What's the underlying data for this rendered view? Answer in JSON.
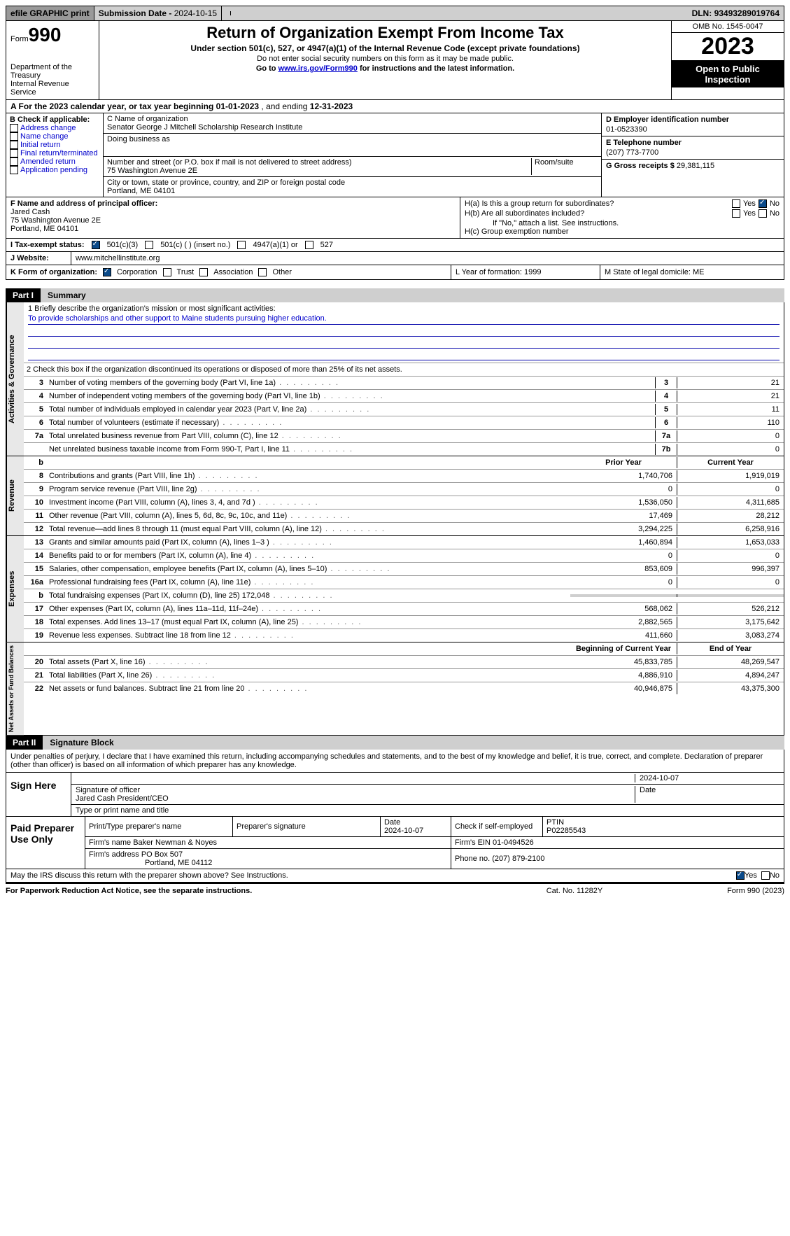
{
  "topbar": {
    "efile": "efile GRAPHIC print",
    "subdate_lbl": "Submission Date - ",
    "subdate": "2024-10-15",
    "dln_lbl": "DLN: ",
    "dln": "93493289019764"
  },
  "header": {
    "form_lbl": "Form",
    "form_num": "990",
    "dept1": "Department of the Treasury",
    "dept2": "Internal Revenue Service",
    "title": "Return of Organization Exempt From Income Tax",
    "sub": "Under section 501(c), 527, or 4947(a)(1) of the Internal Revenue Code (except private foundations)",
    "sub2": "Do not enter social security numbers on this form as it may be made public.",
    "sub3_pre": "Go to ",
    "sub3_link": "www.irs.gov/Form990",
    "sub3_post": " for instructions and the latest information.",
    "omb": "OMB No. 1545-0047",
    "year": "2023",
    "inspection": "Open to Public Inspection"
  },
  "rowA": {
    "pre": "A For the 2023 calendar year, or tax year beginning ",
    "begin": "01-01-2023",
    "mid": "   , and ending ",
    "end": "12-31-2023"
  },
  "boxB": {
    "lbl": "B Check if applicable:",
    "opts": [
      "Address change",
      "Name change",
      "Initial return",
      "Final return/terminated",
      "Amended return",
      "Application pending"
    ]
  },
  "boxC": {
    "name_lbl": "C Name of organization",
    "name": "Senator George J Mitchell Scholarship Research Institute",
    "dba_lbl": "Doing business as",
    "street_lbl": "Number and street (or P.O. box if mail is not delivered to street address)",
    "street": "75 Washington Avenue 2E",
    "room_lbl": "Room/suite",
    "city_lbl": "City or town, state or province, country, and ZIP or foreign postal code",
    "city": "Portland, ME  04101"
  },
  "boxD": {
    "lbl": "D Employer identification number",
    "val": "01-0523390"
  },
  "boxE": {
    "lbl": "E Telephone number",
    "val": "(207) 773-7700"
  },
  "boxG": {
    "lbl": "G Gross receipts $ ",
    "val": "29,381,115"
  },
  "boxF": {
    "lbl": "F  Name and address of principal officer:",
    "name": "Jared Cash",
    "street": "75 Washington Avenue 2E",
    "city": "Portland, ME  04101"
  },
  "boxH": {
    "ha": "H(a)  Is this a group return for subordinates?",
    "hb": "H(b)  Are all subordinates included?",
    "hb_note": "If \"No,\" attach a list. See instructions.",
    "hc": "H(c)  Group exemption number "
  },
  "rowI": {
    "lbl": "I   Tax-exempt status:",
    "o1": "501(c)(3)",
    "o2": "501(c) (  ) (insert no.)",
    "o3": "4947(a)(1) or",
    "o4": "527"
  },
  "rowJ": {
    "lbl": "J   Website:",
    "val": "www.mitchellinstitute.org"
  },
  "rowK": {
    "lbl": "K Form of organization:",
    "o1": "Corporation",
    "o2": "Trust",
    "o3": "Association",
    "o4": "Other",
    "L": "L Year of formation: 1999",
    "M": "M State of legal domicile: ME"
  },
  "part1": {
    "num": "Part I",
    "title": "Summary"
  },
  "mission": {
    "lbl": "1   Briefly describe the organization's mission or most significant activities:",
    "text": "To provide scholarships and other support to Maine students pursuing higher education."
  },
  "line2": "2   Check this box        if the organization discontinued its operations or disposed of more than 25% of its net assets.",
  "govRows": [
    {
      "n": "3",
      "d": "Number of voting members of the governing body (Part VI, line 1a)",
      "rn": "3",
      "v": "21"
    },
    {
      "n": "4",
      "d": "Number of independent voting members of the governing body (Part VI, line 1b)",
      "rn": "4",
      "v": "21"
    },
    {
      "n": "5",
      "d": "Total number of individuals employed in calendar year 2023 (Part V, line 2a)",
      "rn": "5",
      "v": "11"
    },
    {
      "n": "6",
      "d": "Total number of volunteers (estimate if necessary)",
      "rn": "6",
      "v": "110"
    },
    {
      "n": "7a",
      "d": "Total unrelated business revenue from Part VIII, column (C), line 12",
      "rn": "7a",
      "v": "0"
    },
    {
      "n": "",
      "d": "Net unrelated business taxable income from Form 990-T, Part I, line 11",
      "rn": "7b",
      "v": "0"
    }
  ],
  "revHdr": {
    "b": "b",
    "py": "Prior Year",
    "cy": "Current Year"
  },
  "revRows": [
    {
      "n": "8",
      "d": "Contributions and grants (Part VIII, line 1h)",
      "v1": "1,740,706",
      "v2": "1,919,019"
    },
    {
      "n": "9",
      "d": "Program service revenue (Part VIII, line 2g)",
      "v1": "0",
      "v2": "0"
    },
    {
      "n": "10",
      "d": "Investment income (Part VIII, column (A), lines 3, 4, and 7d )",
      "v1": "1,536,050",
      "v2": "4,311,685"
    },
    {
      "n": "11",
      "d": "Other revenue (Part VIII, column (A), lines 5, 6d, 8c, 9c, 10c, and 11e)",
      "v1": "17,469",
      "v2": "28,212"
    },
    {
      "n": "12",
      "d": "Total revenue—add lines 8 through 11 (must equal Part VIII, column (A), line 12)",
      "v1": "3,294,225",
      "v2": "6,258,916"
    }
  ],
  "expRows": [
    {
      "n": "13",
      "d": "Grants and similar amounts paid (Part IX, column (A), lines 1–3 )",
      "v1": "1,460,894",
      "v2": "1,653,033"
    },
    {
      "n": "14",
      "d": "Benefits paid to or for members (Part IX, column (A), line 4)",
      "v1": "0",
      "v2": "0"
    },
    {
      "n": "15",
      "d": "Salaries, other compensation, employee benefits (Part IX, column (A), lines 5–10)",
      "v1": "853,609",
      "v2": "996,397"
    },
    {
      "n": "16a",
      "d": "Professional fundraising fees (Part IX, column (A), line 11e)",
      "v1": "0",
      "v2": "0"
    },
    {
      "n": "b",
      "d": "Total fundraising expenses (Part IX, column (D), line 25) 172,048",
      "v1": "",
      "v2": "",
      "shaded": true
    },
    {
      "n": "17",
      "d": "Other expenses (Part IX, column (A), lines 11a–11d, 11f–24e)",
      "v1": "568,062",
      "v2": "526,212"
    },
    {
      "n": "18",
      "d": "Total expenses. Add lines 13–17 (must equal Part IX, column (A), line 25)",
      "v1": "2,882,565",
      "v2": "3,175,642"
    },
    {
      "n": "19",
      "d": "Revenue less expenses. Subtract line 18 from line 12",
      "v1": "411,660",
      "v2": "3,083,274"
    }
  ],
  "netHdr": {
    "v1": "Beginning of Current Year",
    "v2": "End of Year"
  },
  "netRows": [
    {
      "n": "20",
      "d": "Total assets (Part X, line 16)",
      "v1": "45,833,785",
      "v2": "48,269,547"
    },
    {
      "n": "21",
      "d": "Total liabilities (Part X, line 26)",
      "v1": "4,886,910",
      "v2": "4,894,247"
    },
    {
      "n": "22",
      "d": "Net assets or fund balances. Subtract line 21 from line 20",
      "v1": "40,946,875",
      "v2": "43,375,300"
    }
  ],
  "part2": {
    "num": "Part II",
    "title": "Signature Block"
  },
  "sigDecl": "Under penalties of perjury, I declare that I have examined this return, including accompanying schedules and statements, and to the best of my knowledge and belief, it is true, correct, and complete. Declaration of preparer (other than officer) is based on all information of which preparer has any knowledge.",
  "sign": {
    "here": "Sign Here",
    "sig_lbl": "Signature of officer",
    "name": "Jared Cash President/CEO",
    "date": "2024-10-07",
    "type_lbl": "Type or print name and title"
  },
  "prep": {
    "here": "Paid Preparer Use Only",
    "pname_lbl": "Print/Type preparer's name",
    "psig_lbl": "Preparer's signature",
    "pdate_lbl": "Date",
    "pdate": "2024-10-07",
    "pself_lbl": "Check        if self-employed",
    "ptin_lbl": "PTIN",
    "ptin": "P02285543",
    "firm_lbl": "Firm's name    ",
    "firm": "Baker Newman & Noyes",
    "fein_lbl": "Firm's EIN  ",
    "fein": "01-0494526",
    "faddr_lbl": "Firm's address ",
    "faddr1": "PO Box 507",
    "faddr2": "Portland, ME  04112",
    "fphone_lbl": "Phone no. ",
    "fphone": "(207) 879-2100"
  },
  "discuss": "May the IRS discuss this return with the preparer shown above? See Instructions.",
  "footer": {
    "l": "For Paperwork Reduction Act Notice, see the separate instructions.",
    "c": "Cat. No. 11282Y",
    "r": "Form 990 (2023)"
  }
}
